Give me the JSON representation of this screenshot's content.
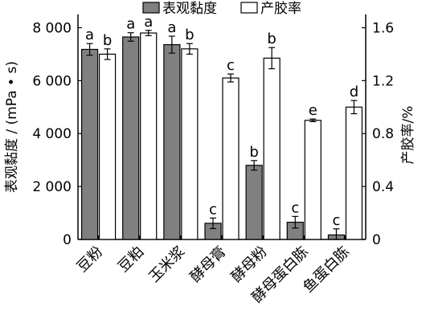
{
  "chart_data": {
    "type": "bar",
    "categories": [
      "豆粉",
      "豆粕",
      "玉米浆",
      "酵母膏",
      "酵母粉",
      "酵母蛋白胨",
      "鱼蛋白胨"
    ],
    "series": [
      {
        "name": "表观黏度",
        "axis": "left",
        "color": "#808080",
        "values": [
          7180,
          7650,
          7360,
          610,
          2800,
          650,
          170
        ],
        "errors": [
          220,
          160,
          320,
          200,
          180,
          220,
          230
        ],
        "letters": [
          "a",
          "a",
          "a",
          "c",
          "b",
          "c",
          "c"
        ]
      },
      {
        "name": "产胶率",
        "axis": "right",
        "color": "#ffffff",
        "values": [
          1.4,
          1.56,
          1.44,
          1.22,
          1.37,
          0.9,
          1.0
        ],
        "errors": [
          0.04,
          0.02,
          0.04,
          0.03,
          0.08,
          0.01,
          0.05
        ],
        "letters": [
          "b",
          "a",
          "b",
          "c",
          "b",
          "e",
          "d"
        ]
      }
    ],
    "ylabel_left": "表观黏度 / (mPa • s)",
    "ylabel_right": "产胶率/%",
    "ylim_left": [
      0,
      8500
    ],
    "ylim_right": [
      0,
      1.7
    ],
    "yticks_left": [
      "0",
      "2 000",
      "4 000",
      "6 000",
      "8 000"
    ],
    "ytick_values_left": [
      0,
      2000,
      4000,
      6000,
      8000
    ],
    "yticks_right": [
      "0",
      "0.4",
      "0.8",
      "1.2",
      "1.6"
    ],
    "ytick_values_right": [
      0,
      0.4,
      0.8,
      1.2,
      1.6
    ],
    "legend_position": "top",
    "grid": false
  }
}
